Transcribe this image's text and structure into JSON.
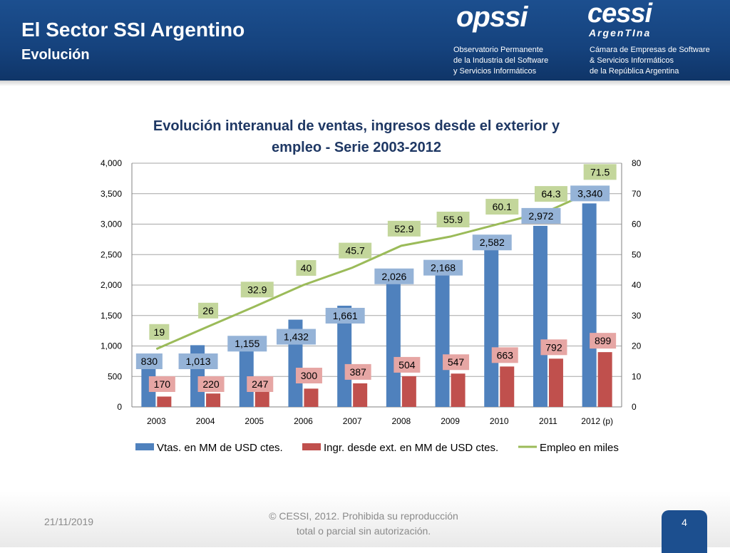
{
  "header": {
    "title": "El Sector SSI Argentino",
    "subtitle": "Evolución",
    "opssi_logo": "opssi",
    "opssi_lines": [
      "Observatorio Permanente",
      "de la Industria del Software",
      "y Servicios Informáticos"
    ],
    "cessi_logo": "cessi",
    "cessi_sub": "ArgenTIna",
    "cessi_lines": [
      "Cámara de Empresas de Software",
      "& Servicios Informáticos",
      "de la República Argentina"
    ]
  },
  "colors": {
    "sales": "#4f81bd",
    "exports": "#c0504d",
    "employment": "#9bbb59",
    "sales_label_bg": "#95b3d7",
    "exports_label_bg": "#e6a6a4",
    "employment_label_bg": "#c3d69b",
    "header": "#1c4f8f",
    "title": "#1f3864"
  },
  "chart_data": {
    "type": "bar",
    "title_lines": [
      "Evolución interanual de ventas, ingresos desde el exterior y",
      "empleo - Serie 2003-2012"
    ],
    "categories": [
      "2003",
      "2004",
      "2005",
      "2006",
      "2007",
      "2008",
      "2009",
      "2010",
      "2011",
      "2012 (p)"
    ],
    "series": [
      {
        "name": "Vtas. en MM de USD ctes.",
        "type": "bar",
        "axis": "left",
        "values": [
          830,
          1013,
          1155,
          1432,
          1661,
          2026,
          2168,
          2582,
          2972,
          3340
        ],
        "labels": [
          "830",
          "1,013",
          "1,155",
          "1,432",
          "1,661",
          "2,026",
          "2,168",
          "2,582",
          "2,972",
          "3,340"
        ]
      },
      {
        "name": "Ingr. desde ext. en MM de USD ctes.",
        "type": "bar",
        "axis": "left",
        "values": [
          170,
          220,
          247,
          300,
          387,
          504,
          547,
          663,
          792,
          899
        ],
        "labels": [
          "170",
          "220",
          "247",
          "300",
          "387",
          "504",
          "547",
          "663",
          "792",
          "899"
        ]
      },
      {
        "name": "Empleo en miles",
        "type": "line",
        "axis": "right",
        "values": [
          19,
          26,
          32.9,
          40,
          45.7,
          52.9,
          55.9,
          60.1,
          64.3,
          71.5
        ],
        "labels": [
          "19",
          "26",
          "32.9",
          "40",
          "45.7",
          "52.9",
          "55.9",
          "60.1",
          "64.3",
          "71.5"
        ]
      }
    ],
    "left_axis": {
      "ylim": [
        0,
        4000
      ],
      "ticks": [
        "0",
        "500",
        "1,000",
        "1,500",
        "2,000",
        "2,500",
        "3,000",
        "3,500",
        "4,000"
      ]
    },
    "right_axis": {
      "ylim": [
        0,
        80
      ],
      "ticks": [
        "0",
        "10",
        "20",
        "30",
        "40",
        "50",
        "60",
        "70",
        "80"
      ]
    },
    "grid": true,
    "legend_position": "bottom"
  },
  "footer": {
    "date": "21/11/2019",
    "copyright_lines": [
      "© CESSI, 2012. Prohibida su reproducción",
      "total o parcial sin autorización."
    ],
    "page": "4"
  }
}
